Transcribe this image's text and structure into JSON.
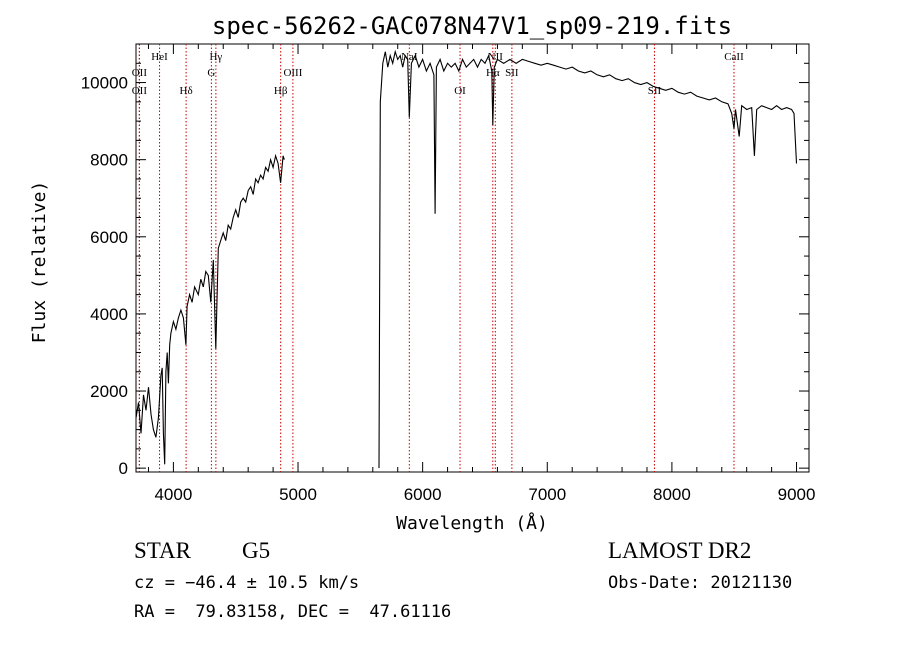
{
  "chart_data": {
    "type": "line",
    "title": "spec-56262-GAC078N47V1_sp09-219.fits",
    "xlabel": "Wavelength (Å)",
    "ylabel": "Flux (relative)",
    "xlim": [
      3700,
      9100
    ],
    "ylim": [
      -100,
      11000
    ],
    "x_ticks": [
      4000,
      5000,
      6000,
      7000,
      8000,
      9000
    ],
    "y_ticks": [
      0,
      2000,
      4000,
      6000,
      8000,
      10000
    ],
    "grid": false,
    "line_color": "#000000",
    "marker_color": "#cc0000",
    "lines": [
      {
        "name": "OII",
        "wavelength": 3727,
        "row": 1
      },
      {
        "name": "OII",
        "wavelength": 3727,
        "row": 2
      },
      {
        "name": "HeI",
        "wavelength": 3889,
        "row": 0
      },
      {
        "name": "Hδ",
        "wavelength": 4102,
        "row": 2
      },
      {
        "name": "Hγ",
        "wavelength": 4341,
        "row": 0
      },
      {
        "name": "G",
        "wavelength": 4305,
        "row": 1
      },
      {
        "name": "Hβ",
        "wavelength": 4861,
        "row": 2
      },
      {
        "name": "OIII",
        "wavelength": 4959,
        "row": 1
      },
      {
        "name": "NaI",
        "wavelength": 5893,
        "row": 0
      },
      {
        "name": "OI",
        "wavelength": 6300,
        "row": 2
      },
      {
        "name": "Hα",
        "wavelength": 6563,
        "row": 1
      },
      {
        "name": "SII",
        "wavelength": 6716,
        "row": 1
      },
      {
        "name": "NII",
        "wavelength": 6583,
        "row": 0
      },
      {
        "name": "SII",
        "wavelength": 7860,
        "row": 2
      },
      {
        "name": "CaII",
        "wavelength": 8498,
        "row": 0
      }
    ],
    "series": [
      {
        "segments": [
          [
            [
              3700,
              1300
            ],
            [
              3720,
              1700
            ],
            [
              3740,
              900
            ],
            [
              3760,
              1900
            ],
            [
              3780,
              1500
            ],
            [
              3800,
              2100
            ],
            [
              3820,
              1400
            ],
            [
              3840,
              1000
            ],
            [
              3860,
              800
            ],
            [
              3880,
              1300
            ],
            [
              3900,
              2400
            ],
            [
              3910,
              2600
            ],
            [
              3920,
              900
            ],
            [
              3930,
              100
            ],
            [
              3940,
              2500
            ],
            [
              3950,
              3000
            ],
            [
              3960,
              2200
            ],
            [
              3970,
              3200
            ],
            [
              3980,
              3500
            ],
            [
              4000,
              3800
            ],
            [
              4020,
              3600
            ],
            [
              4040,
              3900
            ],
            [
              4060,
              4100
            ],
            [
              4080,
              3900
            ],
            [
              4100,
              3200
            ],
            [
              4110,
              4200
            ],
            [
              4130,
              4500
            ],
            [
              4150,
              4300
            ],
            [
              4170,
              4700
            ],
            [
              4200,
              4500
            ],
            [
              4220,
              4900
            ],
            [
              4240,
              4700
            ],
            [
              4260,
              5100
            ],
            [
              4280,
              5000
            ],
            [
              4300,
              4300
            ],
            [
              4320,
              5400
            ],
            [
              4340,
              3100
            ],
            [
              4360,
              5700
            ],
            [
              4380,
              5900
            ],
            [
              4400,
              6100
            ],
            [
              4420,
              5900
            ],
            [
              4440,
              6300
            ],
            [
              4460,
              6200
            ],
            [
              4480,
              6500
            ],
            [
              4500,
              6700
            ],
            [
              4520,
              6500
            ],
            [
              4540,
              6900
            ],
            [
              4560,
              7000
            ],
            [
              4580,
              6900
            ],
            [
              4600,
              7200
            ],
            [
              4620,
              7300
            ],
            [
              4640,
              7100
            ],
            [
              4660,
              7500
            ],
            [
              4680,
              7400
            ],
            [
              4700,
              7600
            ],
            [
              4720,
              7500
            ],
            [
              4740,
              7800
            ],
            [
              4760,
              7700
            ],
            [
              4780,
              8000
            ],
            [
              4800,
              7800
            ],
            [
              4820,
              8100
            ],
            [
              4840,
              7900
            ],
            [
              4860,
              7400
            ],
            [
              4880,
              8100
            ],
            [
              4890,
              8000
            ]
          ],
          [
            [
              5650,
              0
            ],
            [
              5660,
              9500
            ],
            [
              5680,
              10500
            ],
            [
              5700,
              10800
            ],
            [
              5720,
              10400
            ],
            [
              5740,
              10700
            ],
            [
              5760,
              10500
            ],
            [
              5780,
              10800
            ],
            [
              5800,
              10600
            ],
            [
              5820,
              10700
            ],
            [
              5840,
              10400
            ],
            [
              5860,
              10700
            ],
            [
              5880,
              10600
            ],
            [
              5893,
              9100
            ],
            [
              5910,
              10500
            ],
            [
              5940,
              10700
            ],
            [
              5970,
              10400
            ],
            [
              6000,
              10600
            ],
            [
              6030,
              10300
            ],
            [
              6060,
              10500
            ],
            [
              6090,
              10200
            ],
            [
              6100,
              6600
            ],
            [
              6110,
              10400
            ],
            [
              6140,
              10600
            ],
            [
              6170,
              10300
            ],
            [
              6200,
              10500
            ],
            [
              6230,
              10400
            ],
            [
              6260,
              10500
            ],
            [
              6290,
              10300
            ],
            [
              6320,
              10600
            ],
            [
              6350,
              10400
            ],
            [
              6380,
              10500
            ],
            [
              6410,
              10600
            ],
            [
              6440,
              10400
            ],
            [
              6470,
              10600
            ],
            [
              6500,
              10500
            ],
            [
              6530,
              10700
            ],
            [
              6555,
              10300
            ],
            [
              6563,
              8900
            ],
            [
              6575,
              10400
            ],
            [
              6600,
              10600
            ],
            [
              6650,
              10500
            ],
            [
              6700,
              10600
            ],
            [
              6750,
              10500
            ],
            [
              6800,
              10600
            ],
            [
              6850,
              10550
            ],
            [
              6900,
              10500
            ],
            [
              6950,
              10450
            ],
            [
              7000,
              10500
            ],
            [
              7050,
              10450
            ],
            [
              7100,
              10400
            ],
            [
              7150,
              10350
            ],
            [
              7200,
              10400
            ],
            [
              7250,
              10300
            ],
            [
              7300,
              10250
            ],
            [
              7350,
              10300
            ],
            [
              7400,
              10200
            ],
            [
              7450,
              10150
            ],
            [
              7500,
              10200
            ],
            [
              7550,
              10100
            ],
            [
              7600,
              10050
            ],
            [
              7650,
              10100
            ],
            [
              7700,
              10000
            ],
            [
              7750,
              9950
            ],
            [
              7800,
              10000
            ],
            [
              7850,
              9900
            ],
            [
              7900,
              9850
            ],
            [
              7950,
              9800
            ],
            [
              8000,
              9850
            ],
            [
              8050,
              9750
            ],
            [
              8100,
              9700
            ],
            [
              8150,
              9750
            ],
            [
              8200,
              9650
            ],
            [
              8250,
              9600
            ],
            [
              8300,
              9550
            ],
            [
              8350,
              9600
            ],
            [
              8400,
              9500
            ],
            [
              8450,
              9450
            ],
            [
              8480,
              9200
            ],
            [
              8498,
              8800
            ],
            [
              8510,
              9300
            ],
            [
              8540,
              8600
            ],
            [
              8560,
              9400
            ],
            [
              8600,
              9300
            ],
            [
              8640,
              9350
            ],
            [
              8662,
              8100
            ],
            [
              8680,
              9300
            ],
            [
              8720,
              9400
            ],
            [
              8760,
              9350
            ],
            [
              8800,
              9300
            ],
            [
              8840,
              9400
            ],
            [
              8880,
              9300
            ],
            [
              8920,
              9350
            ],
            [
              8960,
              9300
            ],
            [
              8980,
              9200
            ],
            [
              9000,
              7900
            ]
          ]
        ]
      }
    ]
  },
  "info": {
    "object_class": "STAR",
    "subclass": "G5",
    "cz": "cz = −46.4 ± 10.5 km/s",
    "radec": "RA =  79.83158, DEC =  47.61116",
    "survey": "LAMOST DR2",
    "obs_date": "Obs-Date: 20121130"
  }
}
